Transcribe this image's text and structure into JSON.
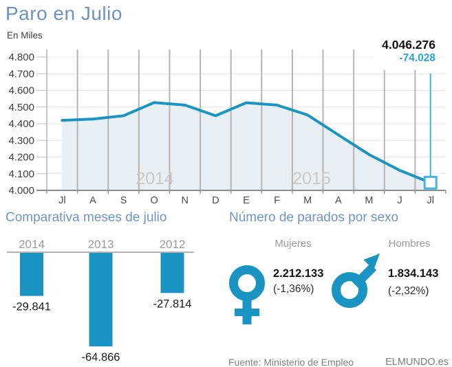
{
  "colors": {
    "accent": "#1a95c3",
    "accent_light": "#45b4dc",
    "heading_blue": "#7095c2",
    "area_fill": "#e9f0f5",
    "grid_dark": "#b4b4b4",
    "grid_light": "#e7e7e7",
    "axis_gray": "#8d8d8d",
    "muted_text": "#9a9a9a",
    "year_watermark": "#c9c9c9"
  },
  "chart_data": [
    {
      "id": "line-unemployment",
      "type": "line",
      "title": "Paro en Julio",
      "ylabel": "En Miles",
      "x": [
        "Jl",
        "A",
        "S",
        "O",
        "N",
        "D",
        "E",
        "F",
        "M",
        "A",
        "M",
        "J",
        "Jl"
      ],
      "values_thousands": [
        4420,
        4428,
        4448,
        4527,
        4512,
        4448,
        4526,
        4512,
        4452,
        4333,
        4215,
        4120,
        4046.276
      ],
      "ylim": [
        4000,
        4800
      ],
      "ytick_values": [
        4800,
        4700,
        4600,
        4500,
        4400,
        4300,
        4200,
        4100,
        4000
      ],
      "ytick_labels": [
        "4.800",
        "4.700",
        "4.600",
        "4.500",
        "4.400",
        "4.300",
        "4.200",
        "4.100",
        "4.000"
      ],
      "year_labels": [
        "2014",
        "2015"
      ],
      "annotation": {
        "value": "4.046.276",
        "delta": "-74.028"
      },
      "grid": true,
      "legend": "none"
    },
    {
      "id": "bar-july-comparison",
      "type": "bar",
      "title": "Comparativa meses de julio",
      "categories": [
        "2014",
        "2013",
        "2012"
      ],
      "values": [
        -29841,
        -64866,
        -27814
      ],
      "labels": [
        "-29.841",
        "-64.866",
        "-27.814"
      ]
    }
  ],
  "sexo": {
    "title": "Número de parados por sexo",
    "groups": [
      {
        "label": "Mujeres",
        "icon": "female-icon",
        "value": "2.212.133",
        "delta": "(-1,36%)"
      },
      {
        "label": "Hombres",
        "icon": "male-icon",
        "value": "1.834.143",
        "delta": "(-2,32%)"
      }
    ]
  },
  "footer": {
    "source": "Fuente: Ministerio de Empleo",
    "brand": "ELMUNDO.es"
  }
}
